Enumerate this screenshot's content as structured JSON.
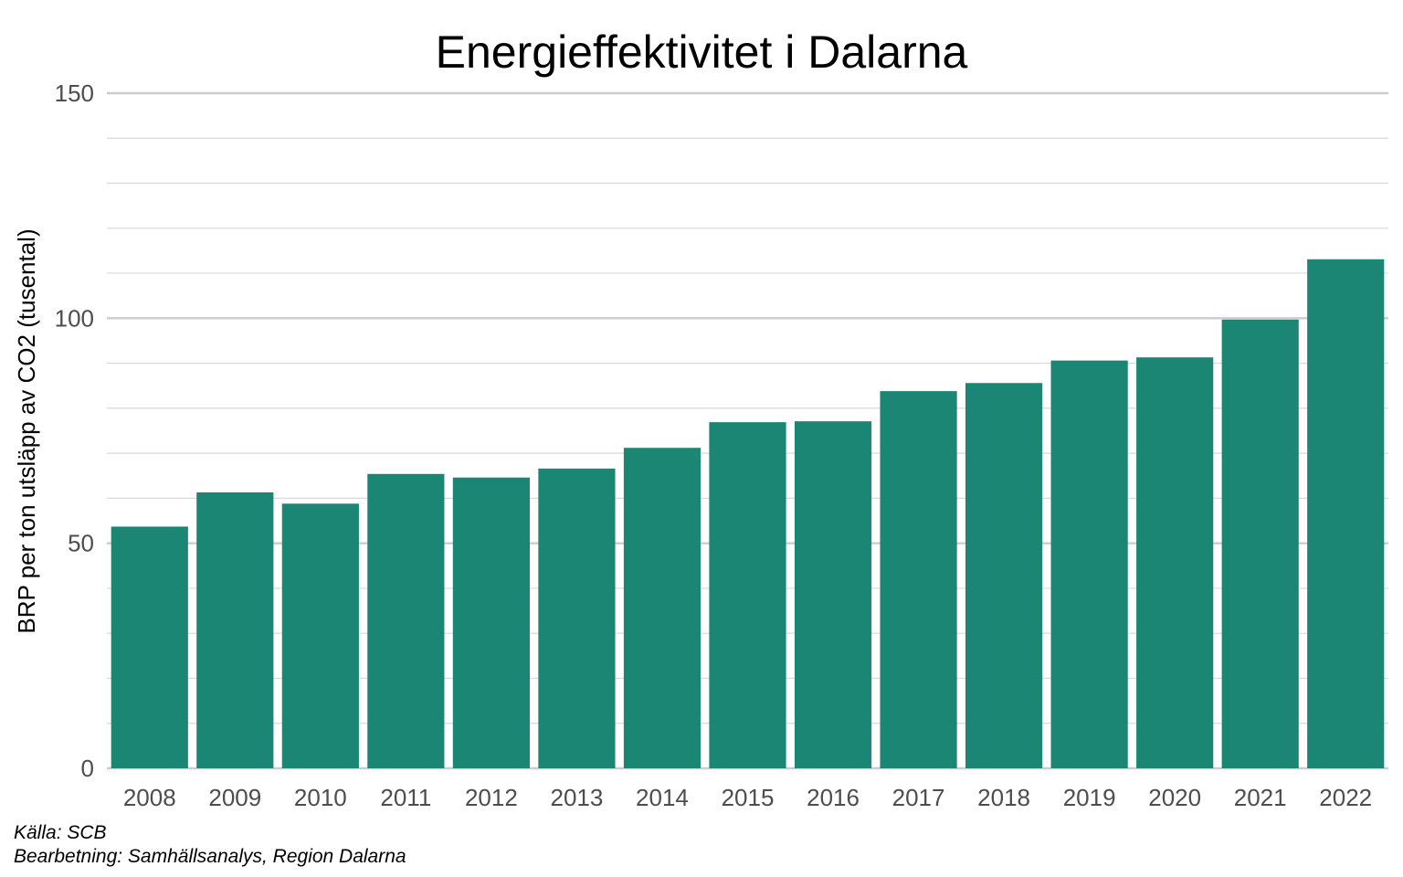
{
  "chart_data": {
    "type": "bar",
    "title": "Energieffektivitet i Dalarna",
    "xlabel": "",
    "ylabel": "BRP per ton utsläpp av CO2 (tusental)",
    "categories": [
      "2008",
      "2009",
      "2010",
      "2011",
      "2012",
      "2013",
      "2014",
      "2015",
      "2016",
      "2017",
      "2018",
      "2019",
      "2020",
      "2021",
      "2022"
    ],
    "values": [
      53.7,
      61.3,
      58.8,
      65.4,
      64.6,
      66.6,
      71.2,
      76.9,
      77.1,
      83.8,
      85.6,
      90.6,
      91.3,
      99.7,
      113.1
    ],
    "ylim": [
      0,
      150
    ],
    "yticks": [
      0,
      50,
      100,
      150
    ],
    "minor_yticks": [
      10,
      20,
      30,
      40,
      60,
      70,
      80,
      90,
      110,
      120,
      130,
      140
    ],
    "grid": true,
    "legend": "none",
    "bar_color": "#1a8673"
  },
  "captions": {
    "source": "Källa: SCB",
    "processing": "Bearbetning: Samhällsanalys, Region Dalarna"
  }
}
